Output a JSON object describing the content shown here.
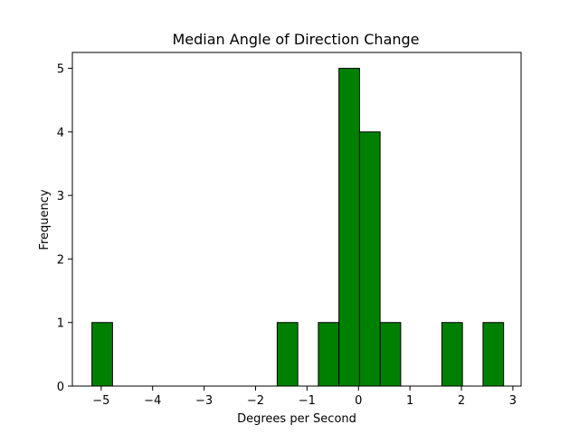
{
  "chart_data": {
    "type": "bar",
    "title": "Median Angle of Direction Change",
    "xlabel": "Degrees per Second",
    "ylabel": "Frequency",
    "xlim": [
      -5.56,
      3.16
    ],
    "ylim": [
      0,
      5.25
    ],
    "xticks": [
      -5,
      -4,
      -3,
      -2,
      -1,
      0,
      1,
      2,
      3
    ],
    "xtick_labels": [
      "−5",
      "−4",
      "−3",
      "−2",
      "−1",
      "0",
      "1",
      "2",
      "3"
    ],
    "yticks": [
      0,
      1,
      2,
      3,
      4,
      5
    ],
    "ytick_labels": [
      "0",
      "1",
      "2",
      "3",
      "4",
      "5"
    ],
    "grid": false,
    "bar_color": "#008000",
    "edge_color": "#000000",
    "bars": [
      {
        "x0": -5.18,
        "x1": -4.78,
        "value": 1
      },
      {
        "x0": -1.58,
        "x1": -1.18,
        "value": 1
      },
      {
        "x0": -0.78,
        "x1": -0.38,
        "value": 1
      },
      {
        "x0": -0.38,
        "x1": 0.02,
        "value": 5
      },
      {
        "x0": 0.02,
        "x1": 0.42,
        "value": 4
      },
      {
        "x0": 0.42,
        "x1": 0.82,
        "value": 1
      },
      {
        "x0": 1.62,
        "x1": 2.02,
        "value": 1
      },
      {
        "x0": 2.42,
        "x1": 2.82,
        "value": 1
      }
    ]
  }
}
